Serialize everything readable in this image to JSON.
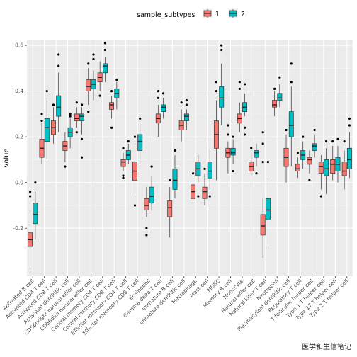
{
  "chart_data": {
    "type": "box",
    "legend": {
      "title": "sample_subtypes",
      "position": "top",
      "items": [
        {
          "label": "1",
          "color": "#f8766d"
        },
        {
          "label": "2",
          "color": "#00bfc4"
        }
      ]
    },
    "ylabel": "value",
    "xlabel": "",
    "ylim": [
      -0.41,
      0.625
    ],
    "yticks": [
      -0.2,
      0.0,
      0.2,
      0.4,
      0.6
    ],
    "ytick_labels": [
      "-0.2",
      "0.0",
      "0.2",
      "0.4",
      "0.6"
    ],
    "categories": [
      "Activated B cell",
      "Activated CD4 T cell",
      "Activated CD8 T cell",
      "Activated dendritic cell",
      "CD56bright natural killer cell",
      "CD56dim natural killer cell",
      "Central memory CD4 T cell",
      "Central memory CD8 T cell",
      "Effector memeory CD4 T cell",
      "Effector memeory CD8 T cell",
      "Eosinophil",
      "Gamma delta T cell",
      "Immature B cell",
      "Immature dendritic cell",
      "Macrophage",
      "Mast cell",
      "MDSC",
      "Memory B cell",
      "Monocyte",
      "Natural killer cell",
      "Natural killer T cell",
      "Neutrophil",
      "Plasmacytoid dendritic cell",
      "Regulatory T cell",
      "T follicular helper cell",
      "Type 1 T helper cell",
      "Type 17 T helper cell",
      "Type 2 T helper cell"
    ],
    "series": [
      {
        "name": "1",
        "color": "#f8766d",
        "boxes": [
          [
            -0.38,
            -0.28,
            -0.25,
            -0.22,
            -0.12,
            [
              -0.06,
              -0.04
            ]
          ],
          [
            0.08,
            0.11,
            0.15,
            0.19,
            0.26,
            [
              0.27,
              0.3
            ]
          ],
          [
            0.17,
            0.21,
            0.24,
            0.27,
            0.33,
            [
              0.34
            ]
          ],
          [
            0.09,
            0.14,
            0.16,
            0.18,
            0.22,
            [
              0.07
            ]
          ],
          [
            0.24,
            0.27,
            0.28,
            0.3,
            0.33,
            [
              0.22,
              0.35
            ]
          ],
          [
            0.34,
            0.4,
            0.42,
            0.45,
            0.5,
            [
              0.31,
              0.52
            ]
          ],
          [
            0.4,
            0.44,
            0.46,
            0.48,
            0.53,
            [
              0.38
            ]
          ],
          [
            0.28,
            0.32,
            0.34,
            0.35,
            0.38,
            [
              0.24,
              0.4
            ]
          ],
          [
            0.05,
            0.07,
            0.09,
            0.1,
            0.13,
            [
              0.02,
              0.03,
              0.15
            ]
          ],
          [
            -0.05,
            0.01,
            0.05,
            0.09,
            0.16,
            [
              -0.1,
              0.2
            ]
          ],
          [
            -0.15,
            -0.12,
            -0.1,
            -0.07,
            -0.02,
            [
              -0.23,
              -0.2
            ]
          ],
          [
            0.2,
            0.26,
            0.28,
            0.3,
            0.34,
            [
              0.37,
              0.4
            ]
          ],
          [
            -0.24,
            -0.15,
            -0.11,
            -0.08,
            -0.02,
            [
              0.01
            ]
          ],
          [
            0.18,
            0.23,
            0.25,
            0.27,
            0.32,
            [
              0.35
            ]
          ],
          [
            -0.08,
            -0.07,
            -0.04,
            -0.01,
            0.02,
            [
              0.04
            ]
          ],
          [
            -0.1,
            -0.07,
            -0.04,
            -0.02,
            0.04,
            [
              0.06
            ]
          ],
          [
            0.01,
            0.15,
            0.21,
            0.27,
            0.36,
            [
              0.4,
              0.44
            ]
          ],
          [
            0.04,
            0.11,
            0.13,
            0.15,
            0.18,
            [
              0.21,
              0.25
            ]
          ],
          [
            0.22,
            0.26,
            0.28,
            0.3,
            0.35,
            [
              0.41,
              0.44
            ]
          ],
          [
            0.03,
            0.05,
            0.07,
            0.09,
            0.13,
            [
              0.15
            ]
          ],
          [
            -0.33,
            -0.23,
            -0.19,
            -0.14,
            -0.07,
            [
              0.09,
              0.17,
              0.22
            ]
          ],
          [
            0.29,
            0.33,
            0.34,
            0.36,
            0.4,
            [
              0.41
            ]
          ],
          [
            0.0,
            0.07,
            0.11,
            0.15,
            0.21,
            [
              0.23
            ]
          ],
          [
            0.02,
            0.05,
            0.06,
            0.08,
            0.11,
            [
              0.13
            ]
          ],
          [
            0.04,
            0.08,
            0.1,
            0.11,
            0.14,
            [
              0.01
            ]
          ],
          [
            -0.03,
            0.04,
            0.07,
            0.09,
            0.12,
            [
              -0.06
            ]
          ],
          [
            0.01,
            0.04,
            0.08,
            0.1,
            0.16,
            [
              0.18
            ]
          ],
          [
            -0.03,
            0.03,
            0.05,
            0.09,
            0.14,
            [
              0.18
            ]
          ]
        ]
      },
      {
        "name": "2",
        "color": "#00bfc4",
        "boxes": [
          [
            -0.25,
            -0.18,
            -0.14,
            -0.09,
            -0.04,
            [
              0.0
            ]
          ],
          [
            0.1,
            0.18,
            0.24,
            0.28,
            0.37,
            [
              0.4
            ]
          ],
          [
            0.22,
            0.29,
            0.33,
            0.38,
            0.48,
            [
              0.51,
              0.56
            ]
          ],
          [
            0.15,
            0.2,
            0.22,
            0.24,
            0.28,
            [
              0.29,
              0.3
            ]
          ],
          [
            0.21,
            0.27,
            0.29,
            0.3,
            0.33,
            [
              0.11,
              0.19,
              0.34
            ]
          ],
          [
            0.36,
            0.41,
            0.43,
            0.45,
            0.49,
            [
              0.54,
              0.56
            ]
          ],
          [
            0.44,
            0.48,
            0.51,
            0.52,
            0.55,
            [
              0.58,
              0.61
            ]
          ],
          [
            0.32,
            0.37,
            0.39,
            0.41,
            0.44,
            [
              0.45
            ]
          ],
          [
            0.08,
            0.1,
            0.12,
            0.14,
            0.17,
            [
              0.18
            ]
          ],
          [
            0.07,
            0.14,
            0.18,
            0.21,
            0.26,
            [
              0.28
            ]
          ],
          [
            -0.12,
            -0.09,
            -0.06,
            -0.02,
            0.03,
            [
              0.07
            ]
          ],
          [
            0.28,
            0.31,
            0.33,
            0.34,
            0.37,
            [
              0.39
            ]
          ],
          [
            -0.07,
            -0.03,
            0.01,
            0.06,
            0.12,
            [
              0.14
            ]
          ],
          [
            0.23,
            0.27,
            0.29,
            0.3,
            0.32,
            [
              0.34,
              0.36
            ]
          ],
          [
            0.0,
            0.03,
            0.06,
            0.09,
            0.12,
            [
              -0.06
            ]
          ],
          [
            -0.03,
            0.02,
            0.05,
            0.09,
            0.15,
            [
              -0.06
            ]
          ],
          [
            0.25,
            0.33,
            0.37,
            0.42,
            0.52,
            [
              0.58,
              0.6
            ]
          ],
          [
            0.08,
            0.12,
            0.13,
            0.15,
            0.19,
            [
              0.05,
              0.2
            ]
          ],
          [
            0.29,
            0.31,
            0.33,
            0.35,
            0.39,
            [
              0.21,
              0.24,
              0.43
            ]
          ],
          [
            0.07,
            0.11,
            0.13,
            0.14,
            0.17,
            [
              0.04
            ]
          ],
          [
            -0.28,
            -0.16,
            -0.12,
            -0.07,
            0.02,
            [
              0.09
            ]
          ],
          [
            0.33,
            0.36,
            0.37,
            0.39,
            0.43,
            [
              0.46
            ]
          ],
          [
            0.07,
            0.2,
            0.25,
            0.31,
            0.42,
            [
              0.44,
              0.52
            ]
          ],
          [
            0.06,
            0.1,
            0.12,
            0.14,
            0.18,
            [
              0.2
            ]
          ],
          [
            0.11,
            0.14,
            0.16,
            0.17,
            0.21,
            [
              0.23
            ]
          ],
          [
            -0.05,
            0.03,
            0.06,
            0.1,
            0.15,
            [
              0.18
            ]
          ],
          [
            0.0,
            0.05,
            0.08,
            0.11,
            0.16,
            [
              0.19
            ]
          ],
          [
            0.02,
            0.06,
            0.1,
            0.15,
            0.22,
            [
              0.25,
              0.28
            ]
          ]
        ]
      }
    ],
    "grid": true,
    "background": "#ebebeb"
  },
  "watermark": "医学和生信笔记"
}
